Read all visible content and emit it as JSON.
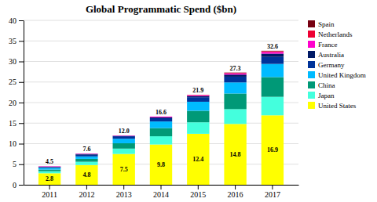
{
  "chart_data": {
    "type": "bar",
    "stacked": true,
    "title": "Global Programmatic Spend ($bn)",
    "categories": [
      "2011",
      "2012",
      "2013",
      "2014",
      "2015",
      "2016",
      "2017"
    ],
    "series": [
      {
        "name": "United States",
        "color": "#ffff00",
        "values": [
          2.8,
          4.8,
          7.5,
          9.8,
          12.4,
          14.8,
          16.9
        ],
        "data_labels": true
      },
      {
        "name": "Japan",
        "color": "#44ffdd",
        "values": [
          0.5,
          0.8,
          1.3,
          2.0,
          2.8,
          3.6,
          4.5
        ]
      },
      {
        "name": "China",
        "color": "#009977",
        "values": [
          0.4,
          0.7,
          1.3,
          2.0,
          2.8,
          3.8,
          4.8
        ]
      },
      {
        "name": "United Kingdom",
        "color": "#00bbff",
        "values": [
          0.4,
          0.6,
          1.1,
          1.6,
          2.2,
          2.7,
          3.2
        ]
      },
      {
        "name": "Germany",
        "color": "#003399",
        "values": [
          0.2,
          0.4,
          0.6,
          0.8,
          1.1,
          1.4,
          1.7
        ]
      },
      {
        "name": "Australia",
        "color": "#001a66",
        "values": [
          0.1,
          0.2,
          0.1,
          0.2,
          0.3,
          0.5,
          0.8
        ]
      },
      {
        "name": "France",
        "color": "#ff00cc",
        "values": [
          0.1,
          0.1,
          0.1,
          0.2,
          0.2,
          0.3,
          0.4
        ]
      },
      {
        "name": "Netherlands",
        "color": "#ee0033",
        "values": [
          0.0,
          0.0,
          0.0,
          0.0,
          0.1,
          0.1,
          0.2
        ]
      },
      {
        "name": "Spain",
        "color": "#770011",
        "values": [
          0.0,
          0.0,
          0.0,
          0.0,
          0.0,
          0.1,
          0.1
        ]
      }
    ],
    "totals": {
      "values": [
        4.5,
        7.6,
        12.0,
        16.6,
        21.9,
        27.3,
        32.6
      ],
      "value_labels": [
        "4.5",
        "7.6",
        "12.0",
        "16.6",
        "21.9",
        "27.3",
        "32.6"
      ]
    },
    "ylim": [
      0,
      40
    ],
    "yticks": [
      0,
      5,
      10,
      15,
      20,
      25,
      30,
      35,
      40
    ],
    "grid": true,
    "legend": "right"
  }
}
